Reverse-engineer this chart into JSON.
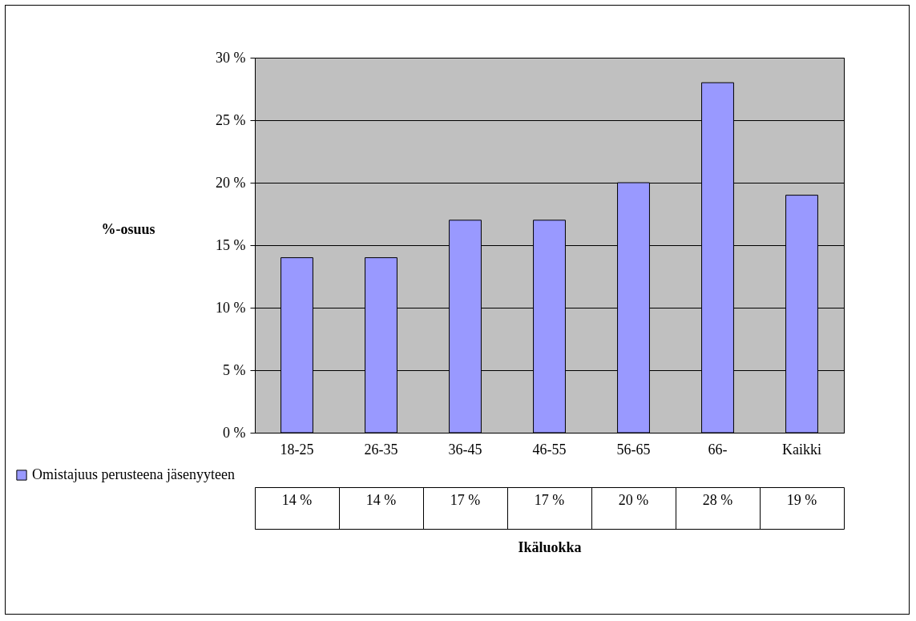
{
  "chart_data": {
    "type": "bar",
    "annotations": [
      "Ikäluokka"
    ],
    "ylabel": "%-osuus",
    "categories": [
      "18-25",
      "26-35",
      "36-45",
      "46-55",
      "56-65",
      "66-",
      "Kaikki"
    ],
    "series": [
      {
        "name": "Omistajuus perusteena jäsenyyteen",
        "color": "#9999ff",
        "values": [
          14,
          14,
          17,
          17,
          20,
          28,
          19
        ],
        "value_labels": [
          "14 %",
          "14 %",
          "17 %",
          "17 %",
          "20 %",
          "28 %",
          "19 %"
        ]
      }
    ],
    "ylim": [
      0,
      30
    ],
    "yticks": [
      {
        "value": 0,
        "label": "0 %"
      },
      {
        "value": 5,
        "label": "5 %"
      },
      {
        "value": 10,
        "label": "10 %"
      },
      {
        "value": 15,
        "label": "15 %"
      },
      {
        "value": 20,
        "label": "20 %"
      },
      {
        "value": 25,
        "label": "25 %"
      },
      {
        "value": 30,
        "label": "30 %"
      }
    ],
    "grid": "y",
    "legend": "bottom left"
  }
}
